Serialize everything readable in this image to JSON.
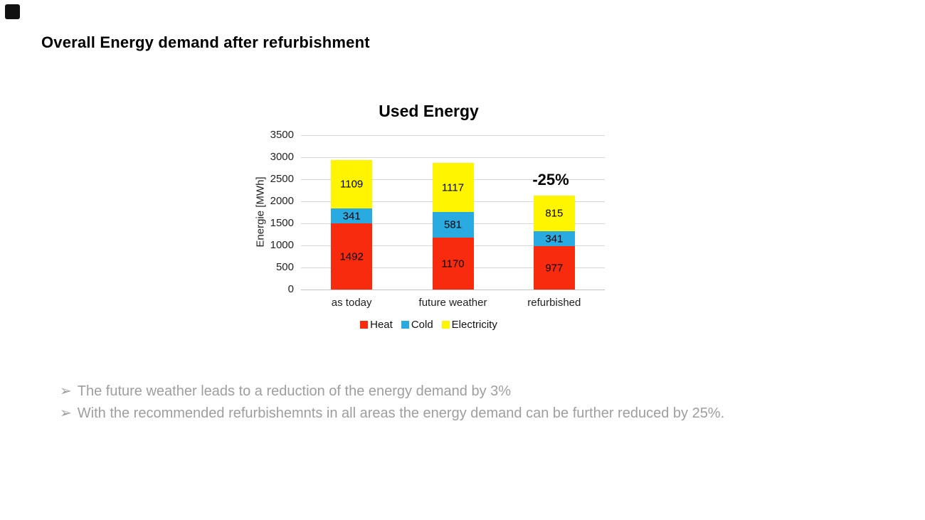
{
  "slide": {
    "title": "Overall Energy demand after refurbishment",
    "corner_mark_color": "#111111",
    "bullet_text_color": "#9e9e9e",
    "bullets": [
      {
        "marker": "➢",
        "text": "The future weather leads to a reduction of the energy demand by 3%"
      },
      {
        "marker": "➢",
        "text": "With the recommended refurbishemnts in all areas the energy demand can be further reduced by 25%."
      }
    ]
  },
  "chart_data": {
    "type": "bar",
    "stacked": true,
    "title": "Used Energy",
    "xlabel": "",
    "ylabel": "Energie [MWh]",
    "categories": [
      "as today",
      "future weather",
      "refurbished"
    ],
    "series": [
      {
        "name": "Heat",
        "color": "#f92b0e",
        "values": [
          1492,
          1170,
          977
        ]
      },
      {
        "name": "Cold",
        "color": "#29abe2",
        "values": [
          341,
          581,
          341
        ]
      },
      {
        "name": "Electricity",
        "color": "#fff500",
        "values": [
          1109,
          1117,
          815
        ]
      }
    ],
    "ylim": [
      0,
      3500
    ],
    "ytick_step": 500,
    "grid": true,
    "gridline_color": "#d6d6d6",
    "zero_line_color": "#c2c2c2",
    "legend_position": "bottom",
    "annotation": {
      "text": "-25%",
      "category": "refurbished"
    }
  }
}
